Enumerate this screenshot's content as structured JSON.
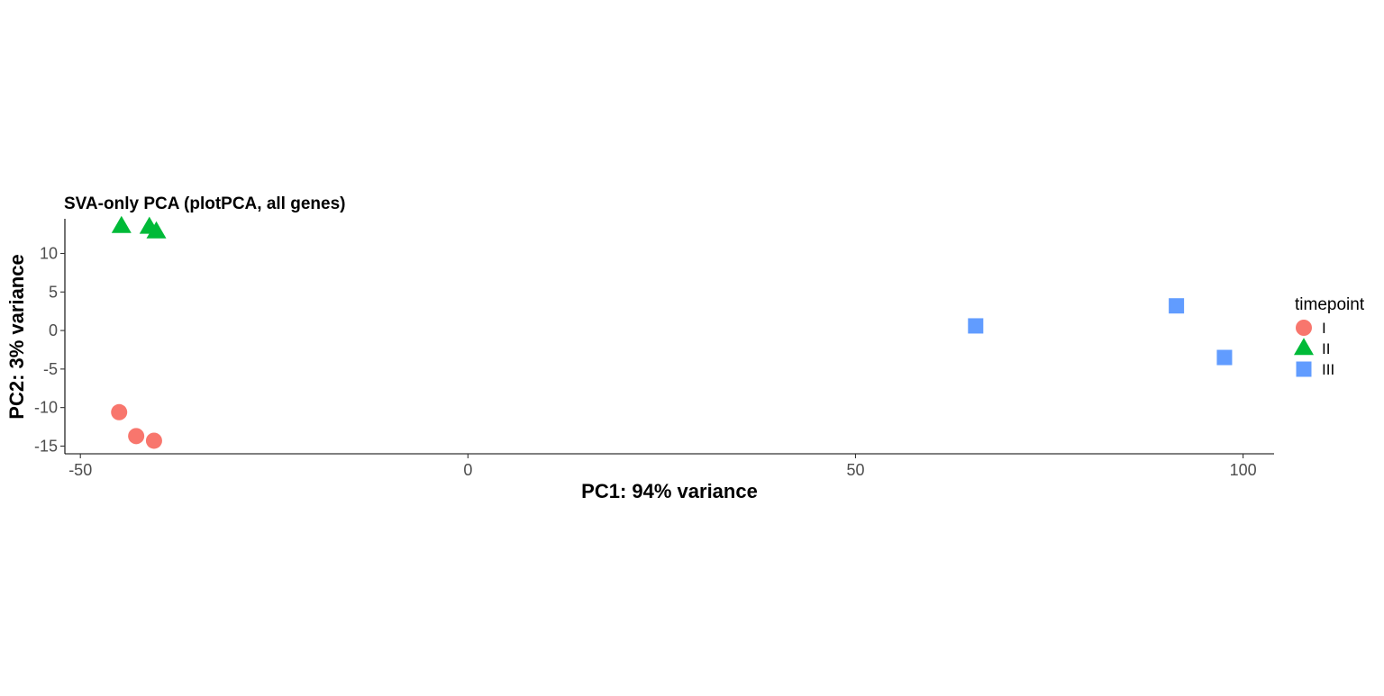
{
  "chart_data": {
    "type": "scatter",
    "title": "SVA-only PCA (plotPCA, all genes)",
    "xlabel": "PC1: 94% variance",
    "ylabel": "PC2: 3% variance",
    "xlim": [
      -52,
      104
    ],
    "ylim": [
      -16,
      14.5
    ],
    "x_ticks": [
      -50,
      0,
      50,
      100
    ],
    "x_tick_labels": [
      "-50",
      "0",
      "50",
      "100"
    ],
    "y_ticks": [
      -15,
      -10,
      -5,
      0,
      5,
      10
    ],
    "y_tick_labels": [
      "-15",
      "-10",
      "-5",
      "0",
      "5",
      "10"
    ],
    "grid": false,
    "legend": {
      "title": "timepoint",
      "position": "right"
    },
    "series": [
      {
        "name": "I",
        "shape": "circle",
        "color": "#F8766D",
        "points": [
          {
            "x": -45.0,
            "y": -10.6
          },
          {
            "x": -42.8,
            "y": -13.7
          },
          {
            "x": -40.5,
            "y": -14.3
          }
        ]
      },
      {
        "name": "II",
        "shape": "triangle",
        "color": "#00BA38",
        "points": [
          {
            "x": -44.7,
            "y": 13.5
          },
          {
            "x": -41.1,
            "y": 13.4
          },
          {
            "x": -40.2,
            "y": 12.8
          }
        ]
      },
      {
        "name": "III",
        "shape": "square",
        "color": "#619CFF",
        "points": [
          {
            "x": 65.5,
            "y": 0.6
          },
          {
            "x": 91.4,
            "y": 3.2
          },
          {
            "x": 97.6,
            "y": -3.5
          }
        ]
      }
    ]
  }
}
